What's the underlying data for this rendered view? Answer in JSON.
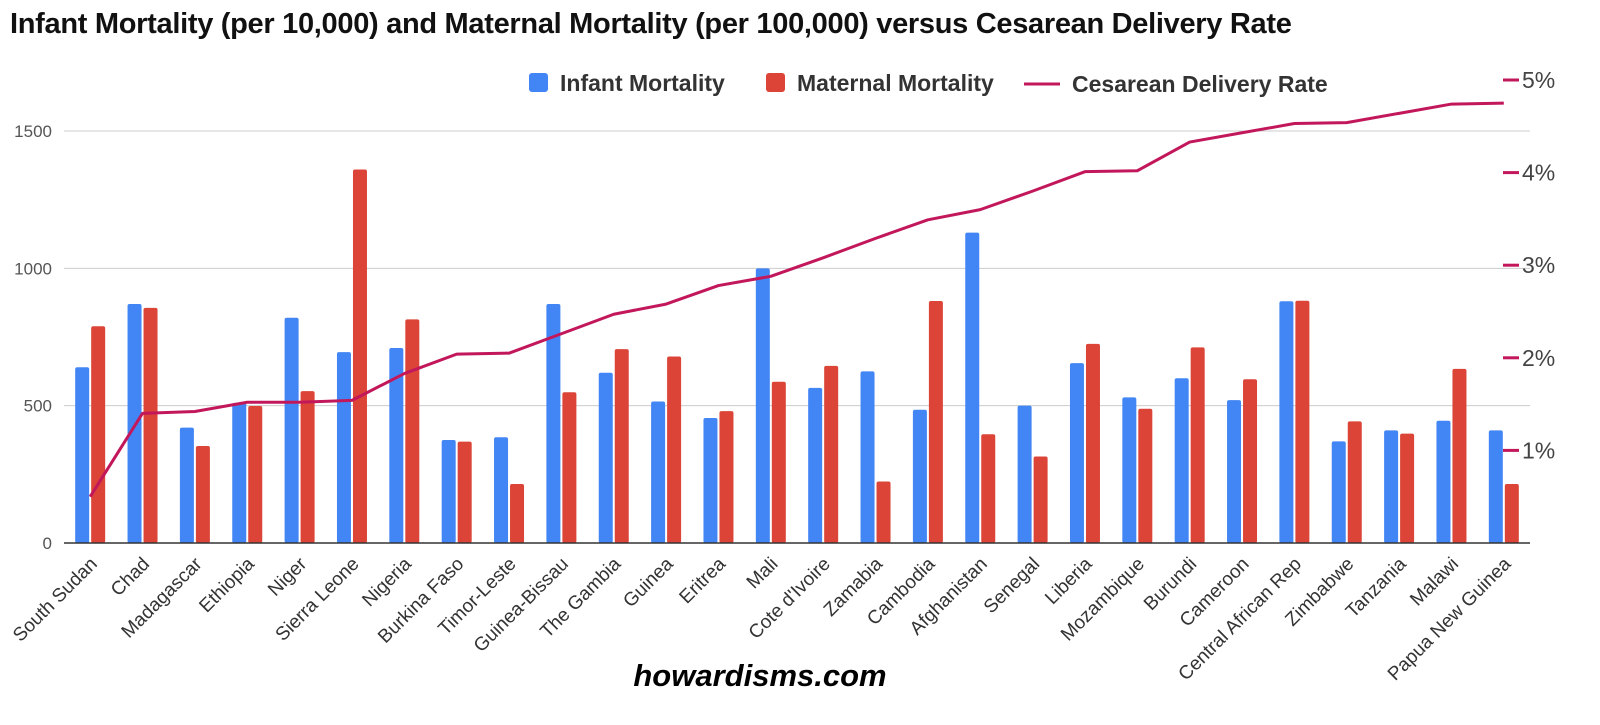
{
  "chart_data": {
    "type": "bar",
    "title": "Infant Mortality (per 10,000) and Maternal Mortality (per 100,000) versus Cesarean Delivery Rate",
    "categories": [
      "South Sudan",
      "Chad",
      "Madagascar",
      "Ethiopia",
      "Niger",
      "Sierra Leone",
      "Nigeria",
      "Burkina Faso",
      "Timor-Leste",
      "Guinea-Bissau",
      "The Gambia",
      "Guinea",
      "Eritrea",
      "Mali",
      "Cote d'Ivoire",
      "Zamabia",
      "Cambodia",
      "Afghanistan",
      "Senegal",
      "Liberia",
      "Mozambique",
      "Burundi",
      "Cameroon",
      "Central African Rep",
      "Zimbabwe",
      "Tanzania",
      "Malawi",
      "Papua New Guinea"
    ],
    "series": [
      {
        "name": "Infant Mortality",
        "type": "bar",
        "axis": "left",
        "color": "#4285f4",
        "values": [
          640,
          870,
          420,
          510,
          820,
          695,
          710,
          375,
          385,
          870,
          620,
          515,
          455,
          1000,
          565,
          625,
          485,
          1130,
          500,
          655,
          530,
          600,
          520,
          880,
          370,
          410,
          445,
          410
        ]
      },
      {
        "name": "Maternal Mortality",
        "type": "bar",
        "axis": "left",
        "color": "#db4437",
        "values": [
          789,
          856,
          353,
          499,
          553,
          1360,
          814,
          369,
          215,
          549,
          706,
          679,
          480,
          587,
          645,
          224,
          881,
          396,
          315,
          725,
          489,
          712,
          596,
          882,
          443,
          398,
          634,
          215
        ]
      },
      {
        "name": "Cesarean Delivery Rate",
        "type": "line",
        "axis": "right",
        "color": "#c2185b",
        "values": [
          0.5,
          1.4,
          1.42,
          1.52,
          1.52,
          1.54,
          1.83,
          2.04,
          2.05,
          2.26,
          2.47,
          2.58,
          2.78,
          2.88,
          3.08,
          3.29,
          3.49,
          3.6,
          3.8,
          4.01,
          4.02,
          4.33,
          4.43,
          4.53,
          4.54,
          4.64,
          4.74,
          4.75
        ]
      }
    ],
    "left_axis": {
      "ylim": [
        0,
        1500
      ],
      "ticks": [
        "0",
        "500",
        "1000",
        "1500"
      ]
    },
    "right_axis": {
      "ylim": [
        0,
        5
      ],
      "ticks": [
        "1%",
        "2%",
        "3%",
        "4%",
        "5%"
      ]
    },
    "grid": true,
    "legend_position": "top"
  },
  "legend": {
    "infant": "Infant Mortality",
    "maternal": "Maternal Mortality",
    "cesarean": "Cesarean Delivery Rate"
  },
  "watermark": "howardisms.com"
}
